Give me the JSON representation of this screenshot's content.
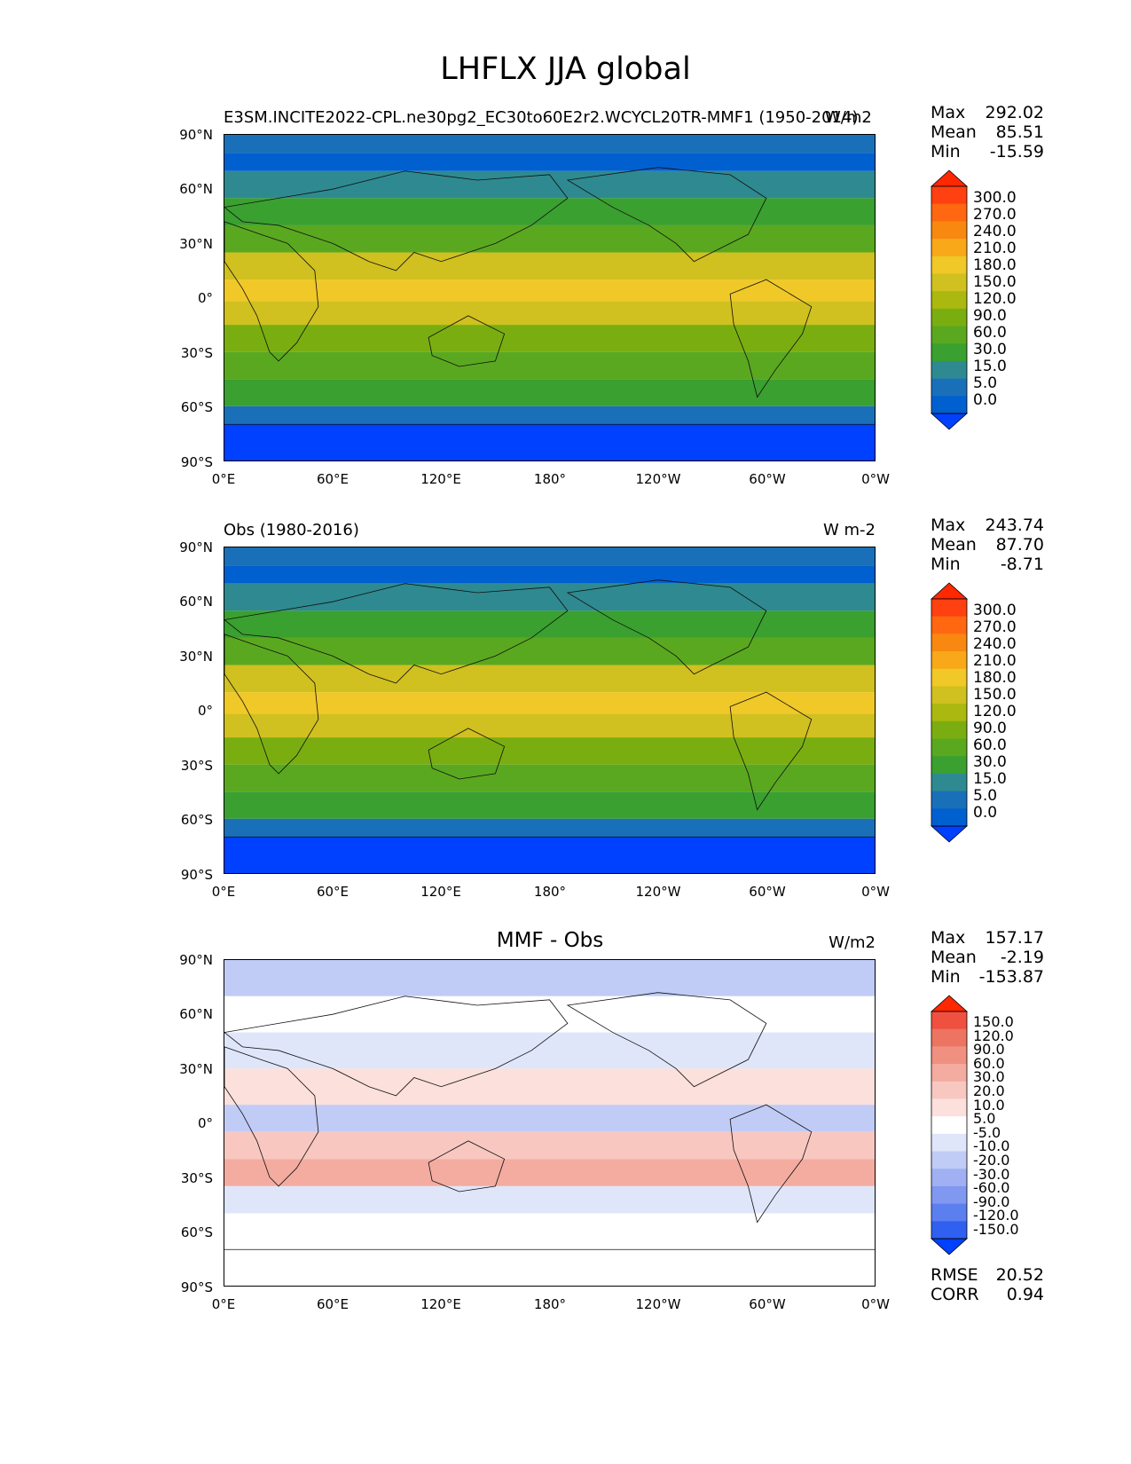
{
  "page_title": "LHFLX JJA global",
  "colors": {
    "levels": [
      "#0040ff",
      "#0060d0",
      "#1a70b8",
      "#2e8a90",
      "#3aa030",
      "#5aa820",
      "#7aae10",
      "#aab810",
      "#d0c020",
      "#f0c828",
      "#f8a818",
      "#f88810",
      "#ff6810",
      "#ff4010",
      "#ff2800"
    ],
    "diff": [
      "#0040ff",
      "#3060f0",
      "#5c7ff0",
      "#8098f0",
      "#a0b0f2",
      "#c0ccf6",
      "#e0e6fa",
      "#ffffff",
      "#fbe0dc",
      "#f8c8c0",
      "#f4aca0",
      "#f09080",
      "#ec7460",
      "#f05040",
      "#ff2800"
    ],
    "land_outline": "#111111"
  },
  "chart_data": [
    {
      "type": "heatmap",
      "panel": "test",
      "title": "E3SM.INCITE2022-CPL.ne30pg2_EC30to60E2r2.WCYCL20TR-MMF1 (1950-2014)",
      "units": "W/m2",
      "x_ticks": [
        "0°E",
        "60°E",
        "120°E",
        "180°",
        "120°W",
        "60°W",
        "0°W"
      ],
      "y_ticks": [
        "90°N",
        "60°N",
        "30°N",
        "0°",
        "30°S",
        "60°S",
        "90°S"
      ],
      "xlim": [
        0,
        360
      ],
      "ylim": [
        -90,
        90
      ],
      "stats": {
        "max_label": "Max",
        "max": "292.02",
        "mean_label": "Mean",
        "mean": "85.51",
        "min_label": "Min",
        "min": "-15.59"
      },
      "colorbar_levels": [
        "300.0",
        "270.0",
        "240.0",
        "210.0",
        "180.0",
        "150.0",
        "120.0",
        "90.0",
        "60.0",
        "30.0",
        "15.0",
        "5.0",
        "0.0"
      ]
    },
    {
      "type": "heatmap",
      "panel": "reference",
      "title": "Obs (1980-2016)",
      "units": "W m-2",
      "x_ticks": [
        "0°E",
        "60°E",
        "120°E",
        "180°",
        "120°W",
        "60°W",
        "0°W"
      ],
      "y_ticks": [
        "90°N",
        "60°N",
        "30°N",
        "0°",
        "30°S",
        "60°S",
        "90°S"
      ],
      "xlim": [
        0,
        360
      ],
      "ylim": [
        -90,
        90
      ],
      "stats": {
        "max_label": "Max",
        "max": "243.74",
        "mean_label": "Mean",
        "mean": "87.70",
        "min_label": "Min",
        "min": "-8.71"
      },
      "colorbar_levels": [
        "300.0",
        "270.0",
        "240.0",
        "210.0",
        "180.0",
        "150.0",
        "120.0",
        "90.0",
        "60.0",
        "30.0",
        "15.0",
        "5.0",
        "0.0"
      ]
    },
    {
      "type": "heatmap",
      "panel": "difference",
      "title": "MMF - Obs",
      "units": "W/m2",
      "x_ticks": [
        "0°E",
        "60°E",
        "120°E",
        "180°",
        "120°W",
        "60°W",
        "0°W"
      ],
      "y_ticks": [
        "90°N",
        "60°N",
        "30°N",
        "0°",
        "30°S",
        "60°S",
        "90°S"
      ],
      "xlim": [
        0,
        360
      ],
      "ylim": [
        -90,
        90
      ],
      "stats": {
        "max_label": "Max",
        "max": "157.17",
        "mean_label": "Mean",
        "mean": "-2.19",
        "min_label": "Min",
        "min": "-153.87"
      },
      "colorbar_levels": [
        "150.0",
        "120.0",
        "90.0",
        "60.0",
        "30.0",
        "20.0",
        "10.0",
        "5.0",
        "-5.0",
        "-10.0",
        "-20.0",
        "-30.0",
        "-60.0",
        "-90.0",
        "-120.0",
        "-150.0"
      ],
      "metrics": {
        "rmse_label": "RMSE",
        "rmse": "20.52",
        "corr_label": "CORR",
        "corr": "0.94"
      }
    }
  ]
}
